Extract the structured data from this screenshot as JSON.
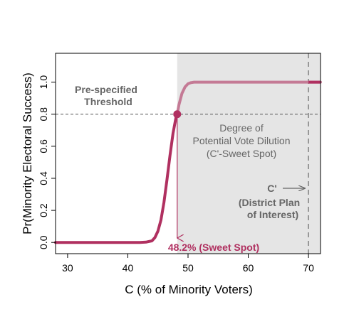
{
  "chart_data": {
    "type": "line",
    "xlabel": "C (% of Minority Voters)",
    "ylabel": "Pr(Minority Electoral Success)",
    "xlim": [
      28,
      72
    ],
    "ylim": [
      -0.07,
      1.18
    ],
    "x_ticks": [
      30,
      40,
      50,
      60,
      70
    ],
    "y_ticks": [
      0.0,
      0.2,
      0.4,
      0.6,
      0.8,
      1.0
    ],
    "x_tick_labels": [
      "30",
      "40",
      "50",
      "60",
      "70"
    ],
    "y_tick_labels": [
      "0.0",
      "0.2",
      "0.4",
      "0.6",
      "0.8",
      "1.0"
    ],
    "grid": false,
    "series": [
      {
        "values_x": [
          28,
          30,
          32,
          34,
          36,
          38,
          40,
          42,
          43,
          44,
          44.5,
          45,
          45.5,
          46,
          46.5,
          47,
          47.5,
          48,
          48.2,
          48.5,
          49,
          49.5,
          50,
          50.5,
          51,
          52,
          54,
          56,
          60,
          65,
          70,
          72
        ],
        "values_y": [
          0,
          0,
          0,
          0,
          0,
          0,
          0,
          0,
          0.002,
          0.01,
          0.03,
          0.07,
          0.14,
          0.25,
          0.39,
          0.54,
          0.68,
          0.78,
          0.8,
          0.86,
          0.93,
          0.97,
          0.99,
          0.997,
          1.0,
          1.0,
          1.0,
          1.0,
          1.0,
          1.0,
          1.0,
          1.0
        ]
      }
    ],
    "threshold_y": 0.8,
    "sweet_spot_x": 48.2,
    "shaded_region_x": [
      48.2,
      72
    ],
    "district_plan_x": 70,
    "colors": {
      "curve": "#b03060",
      "curve_light": "#c47a95",
      "shading": "#e5e5e5",
      "annotation_gray": "#666666",
      "threshold_line": "#555555",
      "district_line": "#888888"
    },
    "annotations": {
      "threshold_line1": "Pre-specified",
      "threshold_line2": "Threshold",
      "dilution_line1": "Degree of",
      "dilution_line2": "Potential Vote Dilution",
      "dilution_line3": "(C'-Sweet Spot)",
      "district_line1": "C'",
      "district_line2": "(District Plan",
      "district_line3": "of Interest)",
      "sweet_spot_label": "48.2% (Sweet Spot)"
    }
  }
}
